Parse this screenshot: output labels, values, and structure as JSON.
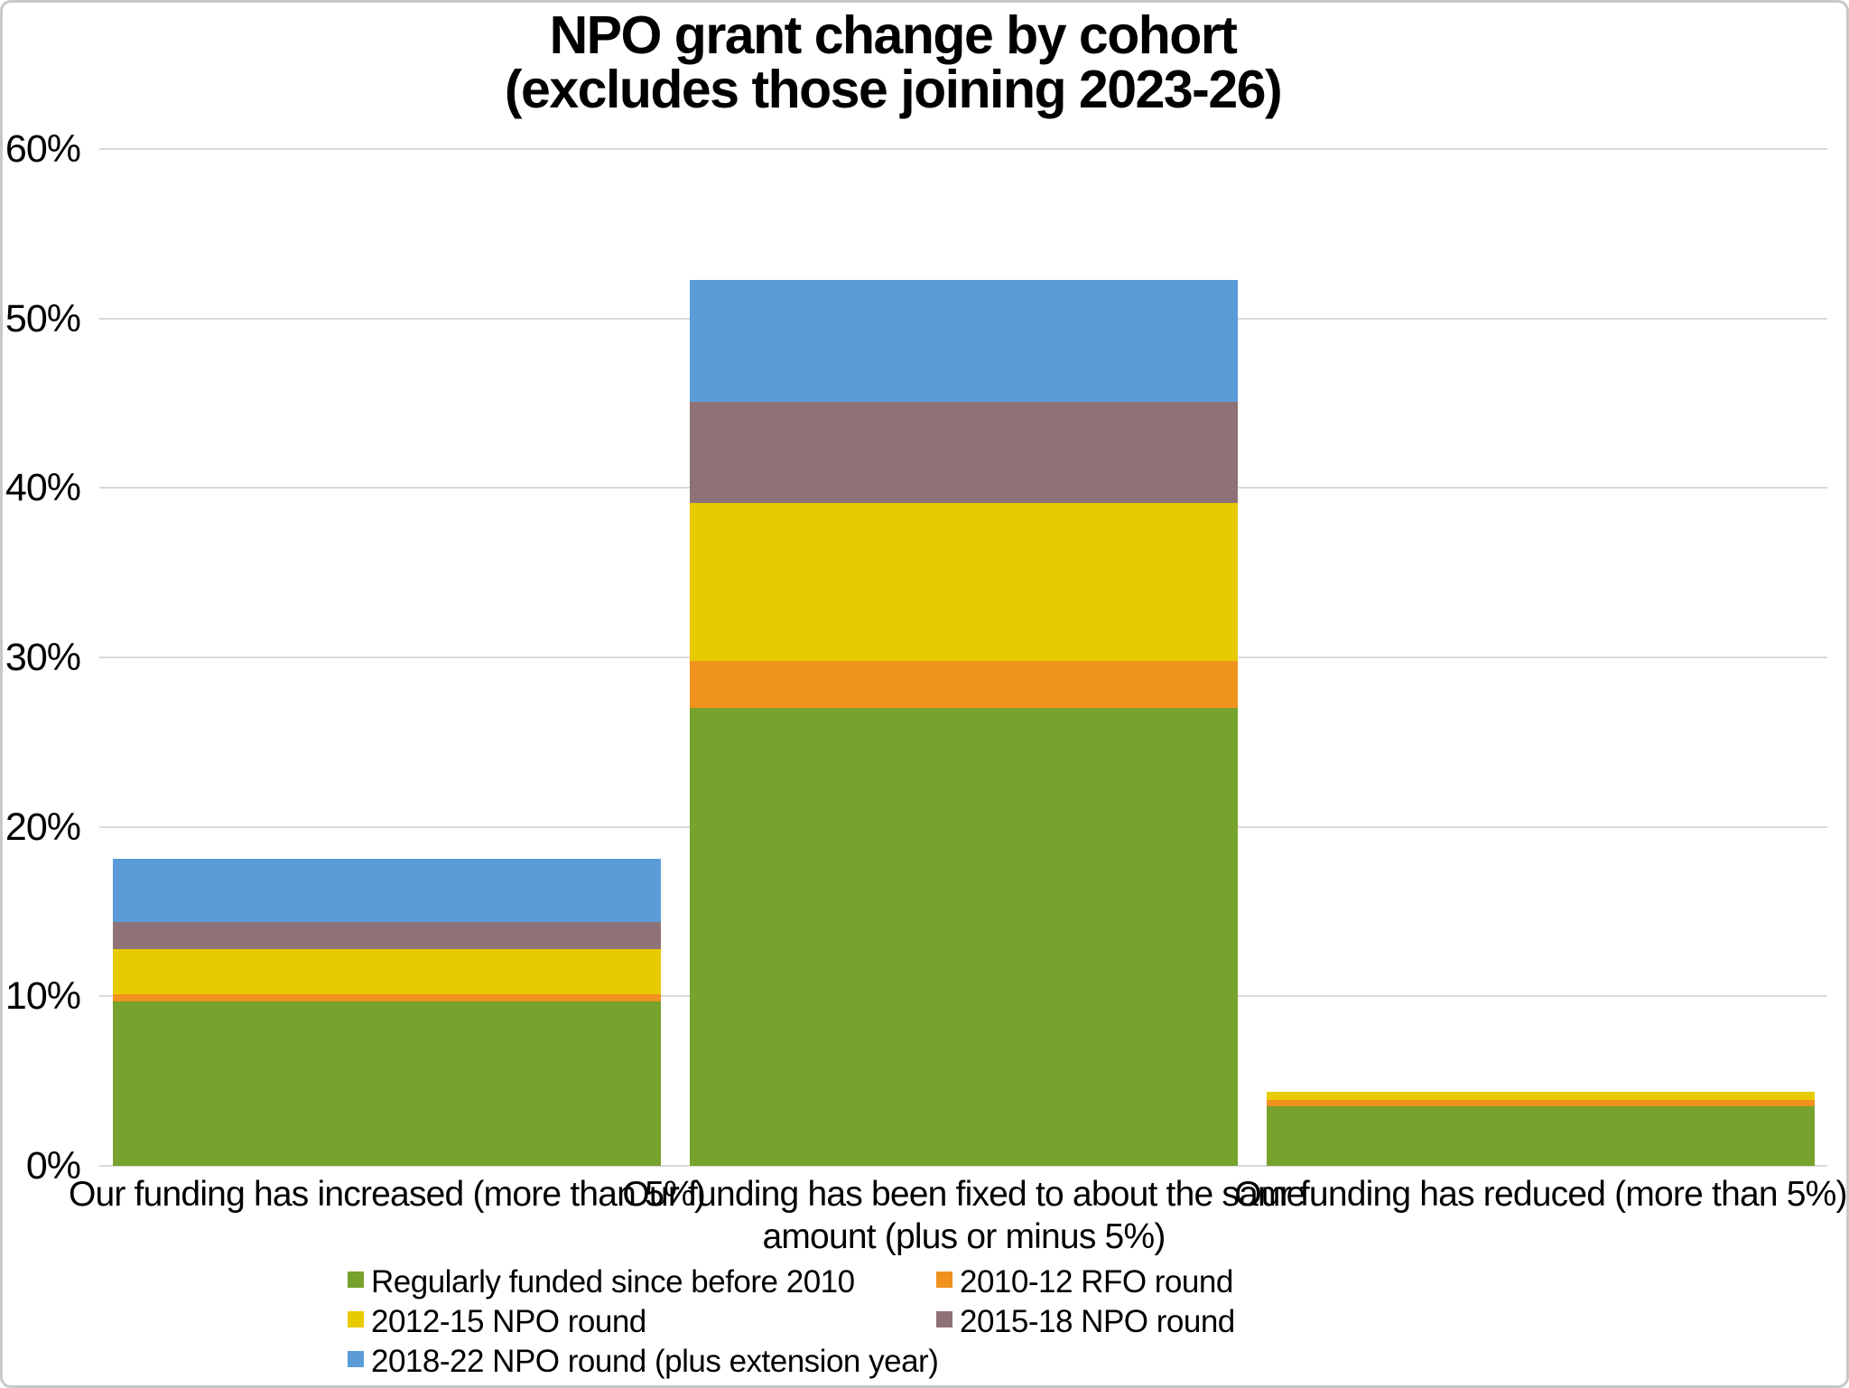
{
  "title": {
    "line1": "NPO grant change by cohort",
    "line2": "(excludes those joining 2023-26)"
  },
  "chart_data": {
    "type": "bar",
    "stacked": true,
    "title": "NPO grant change by cohort (excludes those joining 2023-26)",
    "categories": [
      "Our funding has increased (more than 5%)",
      "Our funding has been fixed to about the same amount (plus or minus 5%)",
      "Our funding has reduced (more than 5%)"
    ],
    "series": [
      {
        "name": "Regularly funded since before 2010",
        "color": "#77A22D",
        "values": [
          9.7,
          27.0,
          3.5
        ]
      },
      {
        "name": "2010-12 RFO round",
        "color": "#F0921E",
        "values": [
          0.4,
          2.8,
          0.4
        ]
      },
      {
        "name": "2012-15 NPO round",
        "color": "#E7CB00",
        "values": [
          2.7,
          9.3,
          0.45
        ]
      },
      {
        "name": "2015-18 NPO round",
        "color": "#8F7277",
        "values": [
          1.6,
          6.0,
          0
        ]
      },
      {
        "name": "2018-22 NPO round (plus extension year)",
        "color": "#5B9CD8",
        "values": [
          3.7,
          7.2,
          0
        ]
      }
    ],
    "category_totals": [
      18.1,
      52.3,
      4.35
    ],
    "xlabel": "",
    "ylabel": "",
    "ylim": [
      0,
      60
    ],
    "ytick_step": 10,
    "ytick_labels": [
      "0%",
      "10%",
      "20%",
      "30%",
      "40%",
      "50%",
      "60%"
    ],
    "grid": true,
    "gridline_color": "#d9d9d9",
    "legend_position": "bottom",
    "value_unit": "%"
  }
}
